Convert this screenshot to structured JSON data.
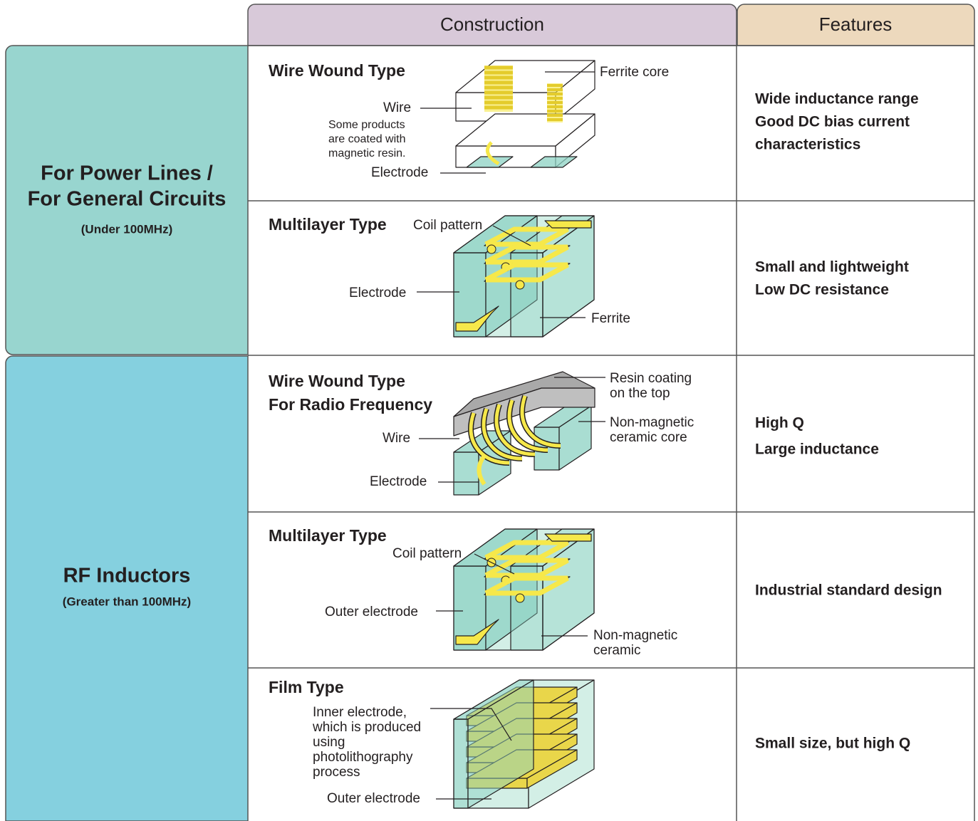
{
  "header": {
    "construction": "Construction",
    "features": "Features"
  },
  "groups": [
    {
      "title": [
        "For Power Lines /",
        "For General Circuits"
      ],
      "note": "(Under 100MHz)"
    },
    {
      "title": [
        "RF Inductors"
      ],
      "note": "(Greater than 100MHz)"
    }
  ],
  "rows": [
    {
      "type": [
        "Wire Wound Type"
      ],
      "labels": [
        [
          "Ferrite core"
        ],
        [
          "Wire"
        ],
        [
          "Some products",
          "are coated with",
          "magnetic resin."
        ],
        [
          "Electrode"
        ]
      ],
      "features": [
        "Wide inductance range",
        "Good DC bias current",
        "characteristics"
      ]
    },
    {
      "type": [
        "Multilayer Type"
      ],
      "labels": [
        [
          "Coil pattern"
        ],
        [
          "Electrode"
        ],
        [
          "Ferrite"
        ]
      ],
      "features": [
        "Small and lightweight",
        "Low DC resistance"
      ]
    },
    {
      "type": [
        "Wire Wound Type",
        "For Radio Frequency"
      ],
      "labels": [
        [
          "Resin coating",
          "on the top"
        ],
        [
          "Wire"
        ],
        [
          "Non-magnetic",
          "ceramic core"
        ],
        [
          "Electrode"
        ]
      ],
      "features": [
        "High Q",
        "Large inductance"
      ]
    },
    {
      "type": [
        "Multilayer Type"
      ],
      "labels": [
        [
          "Coil pattern"
        ],
        [
          "Outer electrode"
        ],
        [
          "Non-magnetic",
          "ceramic"
        ]
      ],
      "features": [
        "Industrial standard design"
      ]
    },
    {
      "type": [
        "Film Type"
      ],
      "labels": [
        [
          "Inner electrode,",
          "which is produced",
          "using",
          "photolithography",
          "process"
        ],
        [
          "Outer electrode"
        ]
      ],
      "features": [
        "Small size, but high Q"
      ]
    }
  ]
}
